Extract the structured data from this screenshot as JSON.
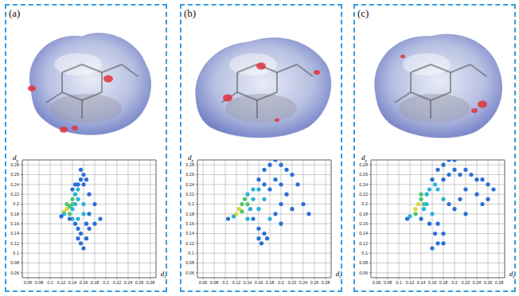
{
  "chart_data": [
    {
      "type": "scatter",
      "title": "(a)",
      "x_label": "di",
      "y_label": "de",
      "marker": "circle",
      "grid": true,
      "xlim": [
        0.05,
        0.29
      ],
      "ylim": [
        0.05,
        0.29
      ],
      "xticks": [
        0.06,
        0.08,
        0.1,
        0.12,
        0.14,
        0.16,
        0.18,
        0.2,
        0.22,
        0.24,
        0.26,
        0.28
      ],
      "yticks": [
        0.06,
        0.08,
        0.1,
        0.12,
        0.14,
        0.16,
        0.18,
        0.2,
        0.22,
        0.24,
        0.26,
        0.28
      ],
      "x": [
        0.125,
        0.13,
        0.135,
        0.13,
        0.14,
        0.14,
        0.135,
        0.125,
        0.145,
        0.15,
        0.14,
        0.145,
        0.15,
        0.15,
        0.155,
        0.16,
        0.155,
        0.165,
        0.16,
        0.145,
        0.14,
        0.17,
        0.18,
        0.19,
        0.18,
        0.17,
        0.16,
        0.16,
        0.17,
        0.15,
        0.145,
        0.15,
        0.155,
        0.15,
        0.155,
        0.16,
        0.165,
        0.14,
        0.135,
        0.12,
        0.165
      ],
      "values": [
        0.185,
        0.19,
        0.195,
        0.2,
        0.2,
        0.21,
        0.18,
        0.18,
        0.22,
        0.23,
        0.19,
        0.2,
        0.21,
        0.24,
        0.25,
        0.26,
        0.27,
        0.25,
        0.24,
        0.24,
        0.23,
        0.22,
        0.2,
        0.17,
        0.16,
        0.18,
        0.2,
        0.18,
        0.15,
        0.17,
        0.16,
        0.15,
        0.14,
        0.13,
        0.12,
        0.11,
        0.13,
        0.17,
        0.17,
        0.175,
        0.16
      ],
      "colors": [
        "#d8d83a",
        "#d8d83a",
        "#4fc36a",
        "#4fc36a",
        "#4fc36a",
        "#4fc36a",
        "#4fc36a",
        "#29b3d8",
        "#29b3d8",
        "#29b3d8",
        "#29b3d8",
        "#29b3d8",
        "#29b3d8",
        "#2a6fd6",
        "#2a6fd6",
        "#2a6fd6",
        "#2a6fd6",
        "#2a6fd6",
        "#2a6fd6",
        "#2a6fd6",
        "#2a6fd6",
        "#2a6fd6",
        "#2a6fd6",
        "#2a6fd6",
        "#2a6fd6",
        "#2a6fd6",
        "#29b3d8",
        "#29b3d8",
        "#2a6fd6",
        "#29b3d8",
        "#2a6fd6",
        "#2a6fd6",
        "#2a6fd6",
        "#2a6fd6",
        "#2a6fd6",
        "#2a6fd6",
        "#2a6fd6",
        "#29b3d8",
        "#2a6fd6",
        "#2a6fd6",
        "#2a6fd6"
      ]
    },
    {
      "type": "scatter",
      "title": "(b)",
      "x_label": "di",
      "y_label": "de",
      "marker": "circle",
      "grid": true,
      "xlim": [
        0.05,
        0.29
      ],
      "ylim": [
        0.05,
        0.29
      ],
      "xticks": [
        0.06,
        0.08,
        0.1,
        0.12,
        0.14,
        0.16,
        0.18,
        0.2,
        0.22,
        0.24,
        0.26,
        0.28
      ],
      "yticks": [
        0.06,
        0.08,
        0.1,
        0.12,
        0.14,
        0.16,
        0.18,
        0.2,
        0.22,
        0.24,
        0.26,
        0.28
      ],
      "x": [
        0.12,
        0.125,
        0.13,
        0.13,
        0.135,
        0.14,
        0.115,
        0.14,
        0.145,
        0.15,
        0.15,
        0.16,
        0.17,
        0.18,
        0.19,
        0.2,
        0.21,
        0.22,
        0.17,
        0.19,
        0.2,
        0.16,
        0.18,
        0.17,
        0.23,
        0.21,
        0.24,
        0.25,
        0.22,
        0.2,
        0.19,
        0.2,
        0.18,
        0.16,
        0.15,
        0.16,
        0.17,
        0.16,
        0.165,
        0.175,
        0.14,
        0.105
      ],
      "values": [
        0.18,
        0.19,
        0.2,
        0.185,
        0.21,
        0.2,
        0.175,
        0.22,
        0.19,
        0.21,
        0.23,
        0.25,
        0.27,
        0.28,
        0.29,
        0.28,
        0.27,
        0.26,
        0.24,
        0.25,
        0.24,
        0.23,
        0.23,
        0.21,
        0.24,
        0.22,
        0.2,
        0.18,
        0.19,
        0.2,
        0.18,
        0.16,
        0.17,
        0.19,
        0.17,
        0.15,
        0.14,
        0.13,
        0.12,
        0.13,
        0.17,
        0.17
      ],
      "colors": [
        "#d8d83a",
        "#d8d83a",
        "#4fc36a",
        "#4fc36a",
        "#4fc36a",
        "#4fc36a",
        "#29b3d8",
        "#29b3d8",
        "#29b3d8",
        "#29b3d8",
        "#29b3d8",
        "#2a6fd6",
        "#2a6fd6",
        "#2a6fd6",
        "#2a6fd6",
        "#2a6fd6",
        "#2a6fd6",
        "#2a6fd6",
        "#2a6fd6",
        "#2a6fd6",
        "#2a6fd6",
        "#29b3d8",
        "#2a6fd6",
        "#29b3d8",
        "#2a6fd6",
        "#2a6fd6",
        "#2a6fd6",
        "#2a6fd6",
        "#2a6fd6",
        "#2a6fd6",
        "#2a6fd6",
        "#2a6fd6",
        "#29b3d8",
        "#29b3d8",
        "#2a6fd6",
        "#2a6fd6",
        "#2a6fd6",
        "#2a6fd6",
        "#2a6fd6",
        "#2a6fd6",
        "#29b3d8",
        "#2a6fd6"
      ]
    },
    {
      "type": "scatter",
      "title": "(c)",
      "x_label": "di",
      "y_label": "de",
      "marker": "circle",
      "grid": true,
      "xlim": [
        0.05,
        0.29
      ],
      "ylim": [
        0.05,
        0.29
      ],
      "xticks": [
        0.06,
        0.08,
        0.1,
        0.12,
        0.14,
        0.16,
        0.18,
        0.2,
        0.22,
        0.24,
        0.26,
        0.28
      ],
      "yticks": [
        0.06,
        0.08,
        0.1,
        0.12,
        0.14,
        0.16,
        0.18,
        0.2,
        0.22,
        0.24,
        0.26,
        0.28
      ],
      "x": [
        0.13,
        0.135,
        0.14,
        0.13,
        0.145,
        0.14,
        0.12,
        0.15,
        0.15,
        0.155,
        0.145,
        0.16,
        0.17,
        0.18,
        0.19,
        0.2,
        0.2,
        0.165,
        0.18,
        0.19,
        0.17,
        0.21,
        0.22,
        0.23,
        0.24,
        0.25,
        0.26,
        0.27,
        0.26,
        0.25,
        0.24,
        0.22,
        0.21,
        0.2,
        0.22,
        0.19,
        0.18,
        0.16,
        0.17,
        0.18,
        0.17,
        0.16,
        0.165,
        0.155,
        0.14,
        0.115,
        0.18
      ],
      "values": [
        0.19,
        0.2,
        0.21,
        0.18,
        0.2,
        0.22,
        0.175,
        0.22,
        0.2,
        0.23,
        0.19,
        0.25,
        0.27,
        0.28,
        0.29,
        0.29,
        0.27,
        0.24,
        0.25,
        0.26,
        0.23,
        0.26,
        0.27,
        0.26,
        0.25,
        0.25,
        0.24,
        0.23,
        0.21,
        0.2,
        0.22,
        0.23,
        0.21,
        0.19,
        0.18,
        0.2,
        0.21,
        0.18,
        0.16,
        0.14,
        0.12,
        0.11,
        0.14,
        0.16,
        0.17,
        0.17,
        0.12
      ],
      "colors": [
        "#d8d83a",
        "#d8d83a",
        "#4fc36a",
        "#4fc36a",
        "#4fc36a",
        "#4fc36a",
        "#29b3d8",
        "#29b3d8",
        "#29b3d8",
        "#29b3d8",
        "#29b3d8",
        "#2a6fd6",
        "#2a6fd6",
        "#2a6fd6",
        "#2a6fd6",
        "#2a6fd6",
        "#2a6fd6",
        "#29b3d8",
        "#2a6fd6",
        "#2a6fd6",
        "#29b3d8",
        "#2a6fd6",
        "#2a6fd6",
        "#2a6fd6",
        "#2a6fd6",
        "#2a6fd6",
        "#2a6fd6",
        "#2a6fd6",
        "#2a6fd6",
        "#2a6fd6",
        "#2a6fd6",
        "#2a6fd6",
        "#2a6fd6",
        "#2a6fd6",
        "#2a6fd6",
        "#2a6fd6",
        "#29b3d8",
        "#29b3d8",
        "#2a6fd6",
        "#2a6fd6",
        "#2a6fd6",
        "#2a6fd6",
        "#2a6fd6",
        "#2a6fd6",
        "#2a6fd6",
        "#2a6fd6",
        "#2a6fd6"
      ]
    }
  ]
}
